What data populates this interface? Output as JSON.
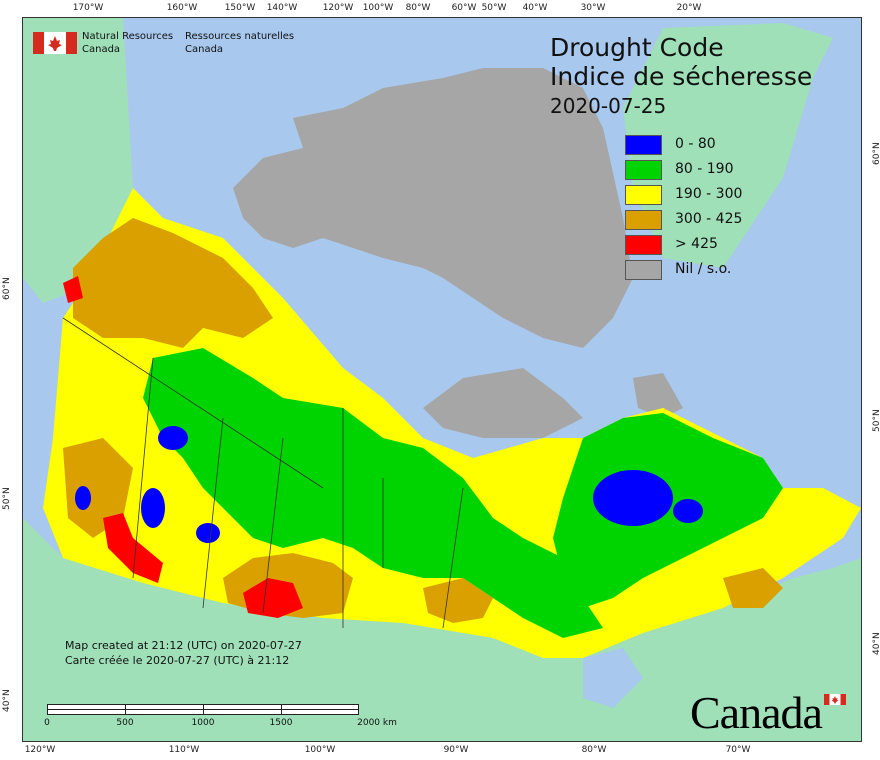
{
  "organization": {
    "name_en_line1": "Natural Resources",
    "name_en_line2": "Canada",
    "name_fr_line1": "Ressources naturelles",
    "name_fr_line2": "Canada"
  },
  "title": {
    "line1": "Drought Code",
    "line2": "Indice de sécheresse",
    "date": "2020-07-25"
  },
  "legend": [
    {
      "label": "0 - 80",
      "color": "#0000ff"
    },
    {
      "label": "80 - 190",
      "color": "#00d400"
    },
    {
      "label": "190 - 300",
      "color": "#ffff00"
    },
    {
      "label": "300 - 425",
      "color": "#d9a000"
    },
    {
      "label": "> 425",
      "color": "#ff0000"
    },
    {
      "label": "Nil / s.o.",
      "color": "#a6a6a6"
    }
  ],
  "colors": {
    "ocean": "#a8c8ee",
    "foreign_land": "#9fe0b8",
    "nodata_land": "#a6a6a6",
    "border": "#333333"
  },
  "graticule": {
    "top": [
      "170°W",
      "160°W",
      "150°W",
      "140°W",
      "120°W",
      "100°W",
      "80°W",
      "60°W",
      "50°W",
      "40°W",
      "30°W",
      "20°W"
    ],
    "bottom": [
      "120°W",
      "110°W",
      "100°W",
      "90°W",
      "80°W",
      "70°W"
    ],
    "left": [
      "60°N",
      "50°N",
      "40°N"
    ],
    "right": [
      "60°N",
      "50°N",
      "40°N"
    ]
  },
  "captions": {
    "created_en": "Map created at 21:12 (UTC) on 2020-07-27",
    "created_fr": "Carte créée le 2020-07-27 (UTC) à 21:12"
  },
  "scalebar": {
    "labels": [
      "0",
      "500",
      "1000",
      "1500",
      "2000 km"
    ]
  },
  "wordmark": "Canada"
}
